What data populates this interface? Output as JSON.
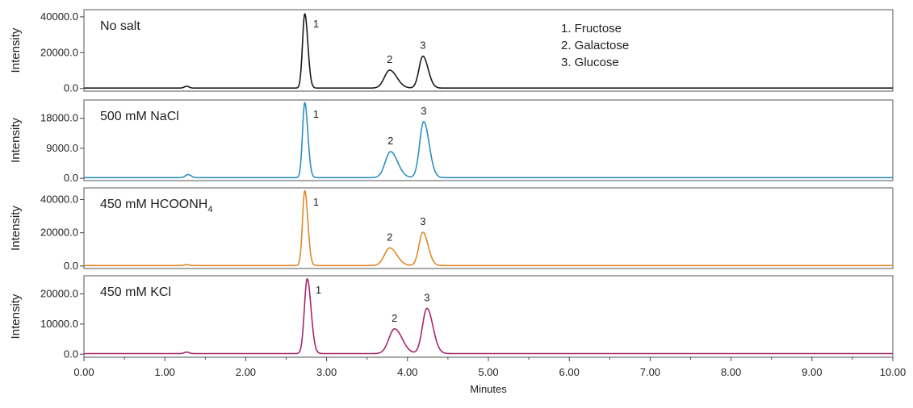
{
  "chart_data": {
    "type": "line",
    "xlabel": "Minutes",
    "ylabel": "Intensity",
    "xlim": [
      0,
      10
    ],
    "x_ticks": [
      "0.00",
      "1.00",
      "2.00",
      "3.00",
      "4.00",
      "5.00",
      "6.00",
      "7.00",
      "8.00",
      "9.00",
      "10.00"
    ],
    "legend": [
      "1. Fructose",
      "2. Galactose",
      "3. Glucose"
    ],
    "legend_position": "top-right of first panel",
    "grid": false,
    "panels": [
      {
        "label": "No salt",
        "color": "#1a1a1a",
        "ylim": [
          -1500,
          44000
        ],
        "y_ticks": [
          0,
          20000,
          40000
        ],
        "y_tick_labels": [
          "0.0",
          "20000.0",
          "40000.0"
        ],
        "baseline": 200,
        "peaks": [
          {
            "id": "1",
            "x": 2.73,
            "height": 41500,
            "width": 0.028
          },
          {
            "id": "2",
            "x": 3.78,
            "height": 10000,
            "width": 0.065
          },
          {
            "id": "3",
            "x": 4.19,
            "height": 17800,
            "width": 0.048
          }
        ],
        "bumps": [
          {
            "x": 1.27,
            "height": 1000,
            "width": 0.03
          }
        ]
      },
      {
        "label": "500 mM NaCl",
        "color": "#2e8fc2",
        "ylim": [
          -700,
          23500
        ],
        "y_ticks": [
          0,
          9000,
          18000
        ],
        "y_tick_labels": [
          "0.0",
          "9000.0",
          "18000.0"
        ],
        "baseline": 200,
        "peaks": [
          {
            "id": "1",
            "x": 2.73,
            "height": 22500,
            "width": 0.028
          },
          {
            "id": "2",
            "x": 3.79,
            "height": 7800,
            "width": 0.065
          },
          {
            "id": "3",
            "x": 4.2,
            "height": 16800,
            "width": 0.05
          }
        ],
        "bumps": [
          {
            "x": 1.29,
            "height": 900,
            "width": 0.035
          }
        ]
      },
      {
        "label": "450 mM HCOONH",
        "label_sub": "4",
        "color": "#e0892b",
        "ylim": [
          -1500,
          47000
        ],
        "y_ticks": [
          0,
          20000,
          40000
        ],
        "y_tick_labels": [
          "0.0",
          "20000.0",
          "40000.0"
        ],
        "baseline": 300,
        "peaks": [
          {
            "id": "1",
            "x": 2.73,
            "height": 45000,
            "width": 0.028
          },
          {
            "id": "2",
            "x": 3.78,
            "height": 10600,
            "width": 0.065
          },
          {
            "id": "3",
            "x": 4.19,
            "height": 20000,
            "width": 0.048
          }
        ],
        "bumps": [
          {
            "x": 1.27,
            "height": 500,
            "width": 0.03
          }
        ]
      },
      {
        "label": "450 mM KCl",
        "color": "#a3286e",
        "ylim": [
          -1000,
          26000
        ],
        "y_ticks": [
          0,
          10000,
          20000
        ],
        "y_tick_labels": [
          "0.0",
          "10000.0",
          "20000.0"
        ],
        "baseline": 200,
        "peaks": [
          {
            "id": "1",
            "x": 2.76,
            "height": 24800,
            "width": 0.035
          },
          {
            "id": "2",
            "x": 3.84,
            "height": 8200,
            "width": 0.07
          },
          {
            "id": "3",
            "x": 4.24,
            "height": 15000,
            "width": 0.055
          }
        ],
        "bumps": [
          {
            "x": 1.27,
            "height": 500,
            "width": 0.03
          }
        ]
      }
    ]
  }
}
